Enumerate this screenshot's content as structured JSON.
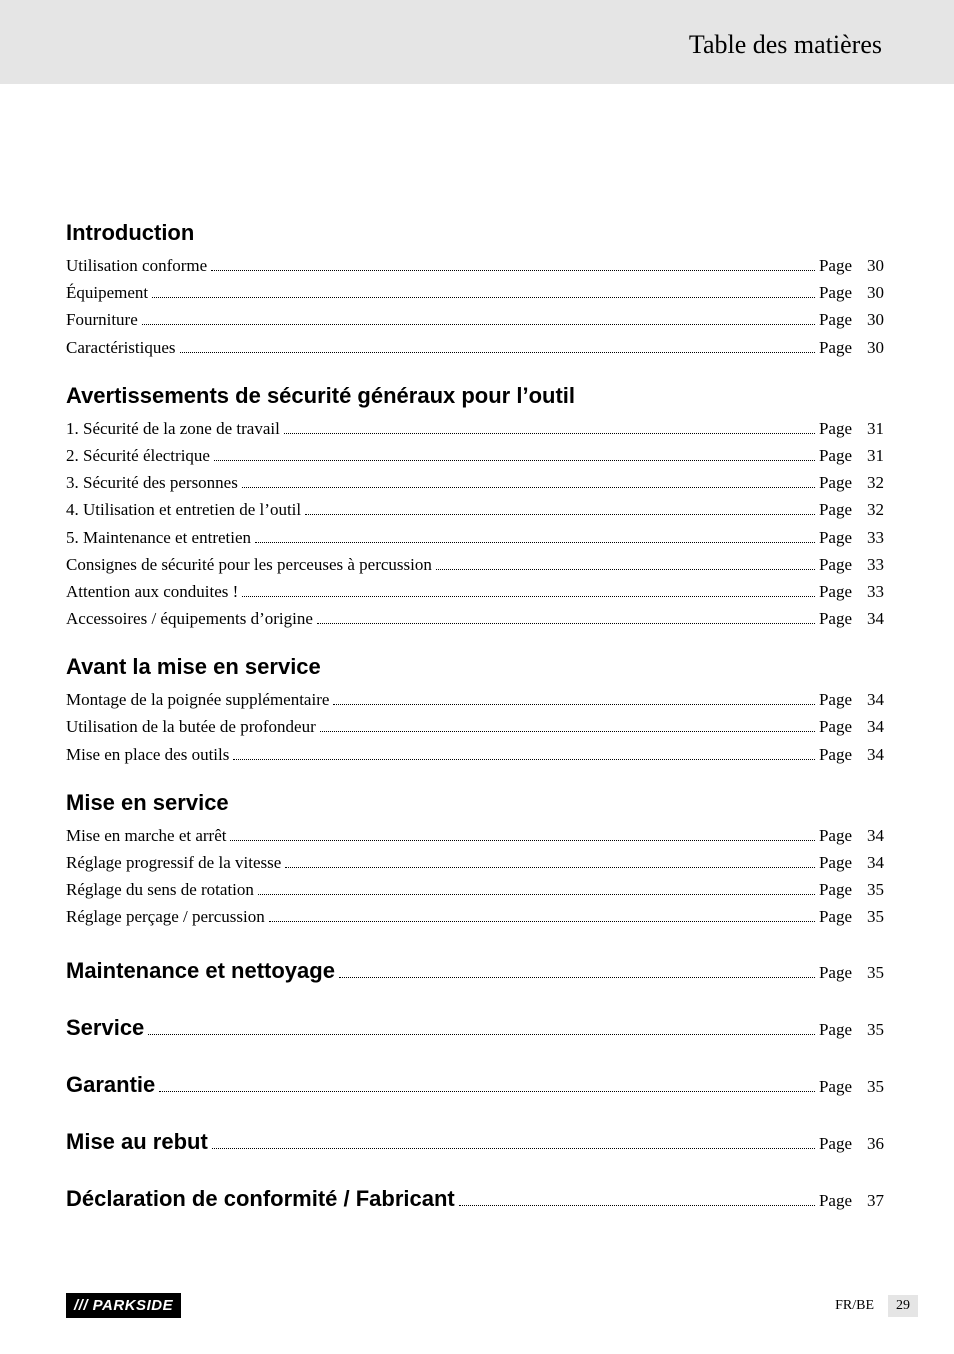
{
  "header": {
    "title": "Table des matières"
  },
  "page_label": "Page",
  "sections": [
    {
      "heading": "Introduction",
      "items": [
        {
          "label": "Utilisation conforme",
          "page": "30"
        },
        {
          "label": "Équipement",
          "page": "30"
        },
        {
          "label": "Fourniture",
          "page": "30"
        },
        {
          "label": "Caractéristiques",
          "page": "30"
        }
      ]
    },
    {
      "heading": "Avertissements de sécurité généraux pour l’outil",
      "items": [
        {
          "label": "1. Sécurité de la zone de travail",
          "page": "31"
        },
        {
          "label": "2. Sécurité électrique",
          "page": "31"
        },
        {
          "label": "3. Sécurité des personnes",
          "page": "32"
        },
        {
          "label": "4. Utilisation et entretien de l’outil",
          "page": "32"
        },
        {
          "label": "5. Maintenance et entretien",
          "page": "33"
        },
        {
          "label": "Consignes de sécurité pour les perceuses à percussion",
          "page": "33"
        },
        {
          "label": "Attention aux conduites !",
          "page": "33"
        },
        {
          "label": "Accessoires / équipements d’origine",
          "page": "34"
        }
      ]
    },
    {
      "heading": "Avant la mise en service",
      "items": [
        {
          "label": "Montage de la poignée supplémentaire",
          "page": "34"
        },
        {
          "label": "Utilisation de la butée de profondeur",
          "page": "34"
        },
        {
          "label": "Mise en place des outils",
          "page": "34"
        }
      ]
    },
    {
      "heading": "Mise en service",
      "items": [
        {
          "label": "Mise en marche et arrêt",
          "page": "34"
        },
        {
          "label": "Réglage progressif de la vitesse",
          "page": "34"
        },
        {
          "label": "Réglage du sens de rotation",
          "page": "35"
        },
        {
          "label": "Réglage perçage / percussion",
          "page": "35"
        }
      ]
    }
  ],
  "single_sections": [
    {
      "heading": "Maintenance et nettoyage",
      "page": "35"
    },
    {
      "heading": "Service",
      "page": "35"
    },
    {
      "heading": "Garantie",
      "page": "35"
    },
    {
      "heading": "Mise au rebut",
      "page": "36"
    },
    {
      "heading": "Déclaration de conformité / Fabricant",
      "page": "37"
    }
  ],
  "footer": {
    "brand": "/// PARKSIDE",
    "locale": "FR/BE",
    "page_number": "29"
  },
  "colors": {
    "header_bg": "#e5e5e5",
    "text": "#000000",
    "page_bg": "#ffffff",
    "brand_bg": "#000000",
    "brand_fg": "#ffffff"
  },
  "typography": {
    "heading_weight": "bold",
    "heading_size_pt": 16,
    "body_size_pt": 13,
    "header_title_size_pt": 20,
    "header_title_family": "serif"
  }
}
